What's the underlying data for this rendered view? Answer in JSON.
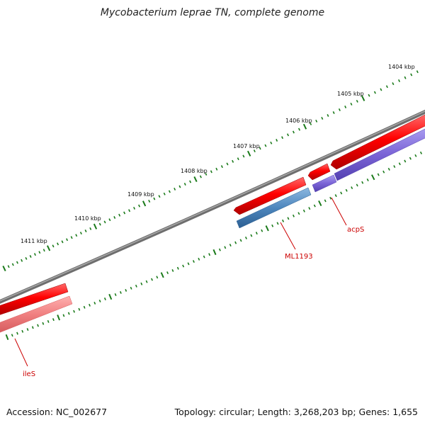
{
  "title": "Mycobacterium leprae TN, complete genome",
  "footer": {
    "accession": "Accession: NC_002677",
    "summary": "Topology: circular; Length: 3,268,203 bp; Genes: 1,655"
  },
  "kbp_labels": [
    "1404 kbp",
    "1405 kbp",
    "1406 kbp",
    "1407 kbp",
    "1408 kbp",
    "1409 kbp",
    "1410 kbp",
    "1411 kbp"
  ],
  "gene_labels": [
    "acpS",
    "ML1193",
    "ileS"
  ],
  "colors": {
    "backbone": "#8a8a8a",
    "forward_cds": "#ee0000",
    "reverse_cds_blue": "#4d86bd",
    "reverse_cds_purple": "#7a63d6",
    "reverse_cds_pink": "#f07f80",
    "tick": "#1a7a1a",
    "gene_label": "#cc0000"
  }
}
